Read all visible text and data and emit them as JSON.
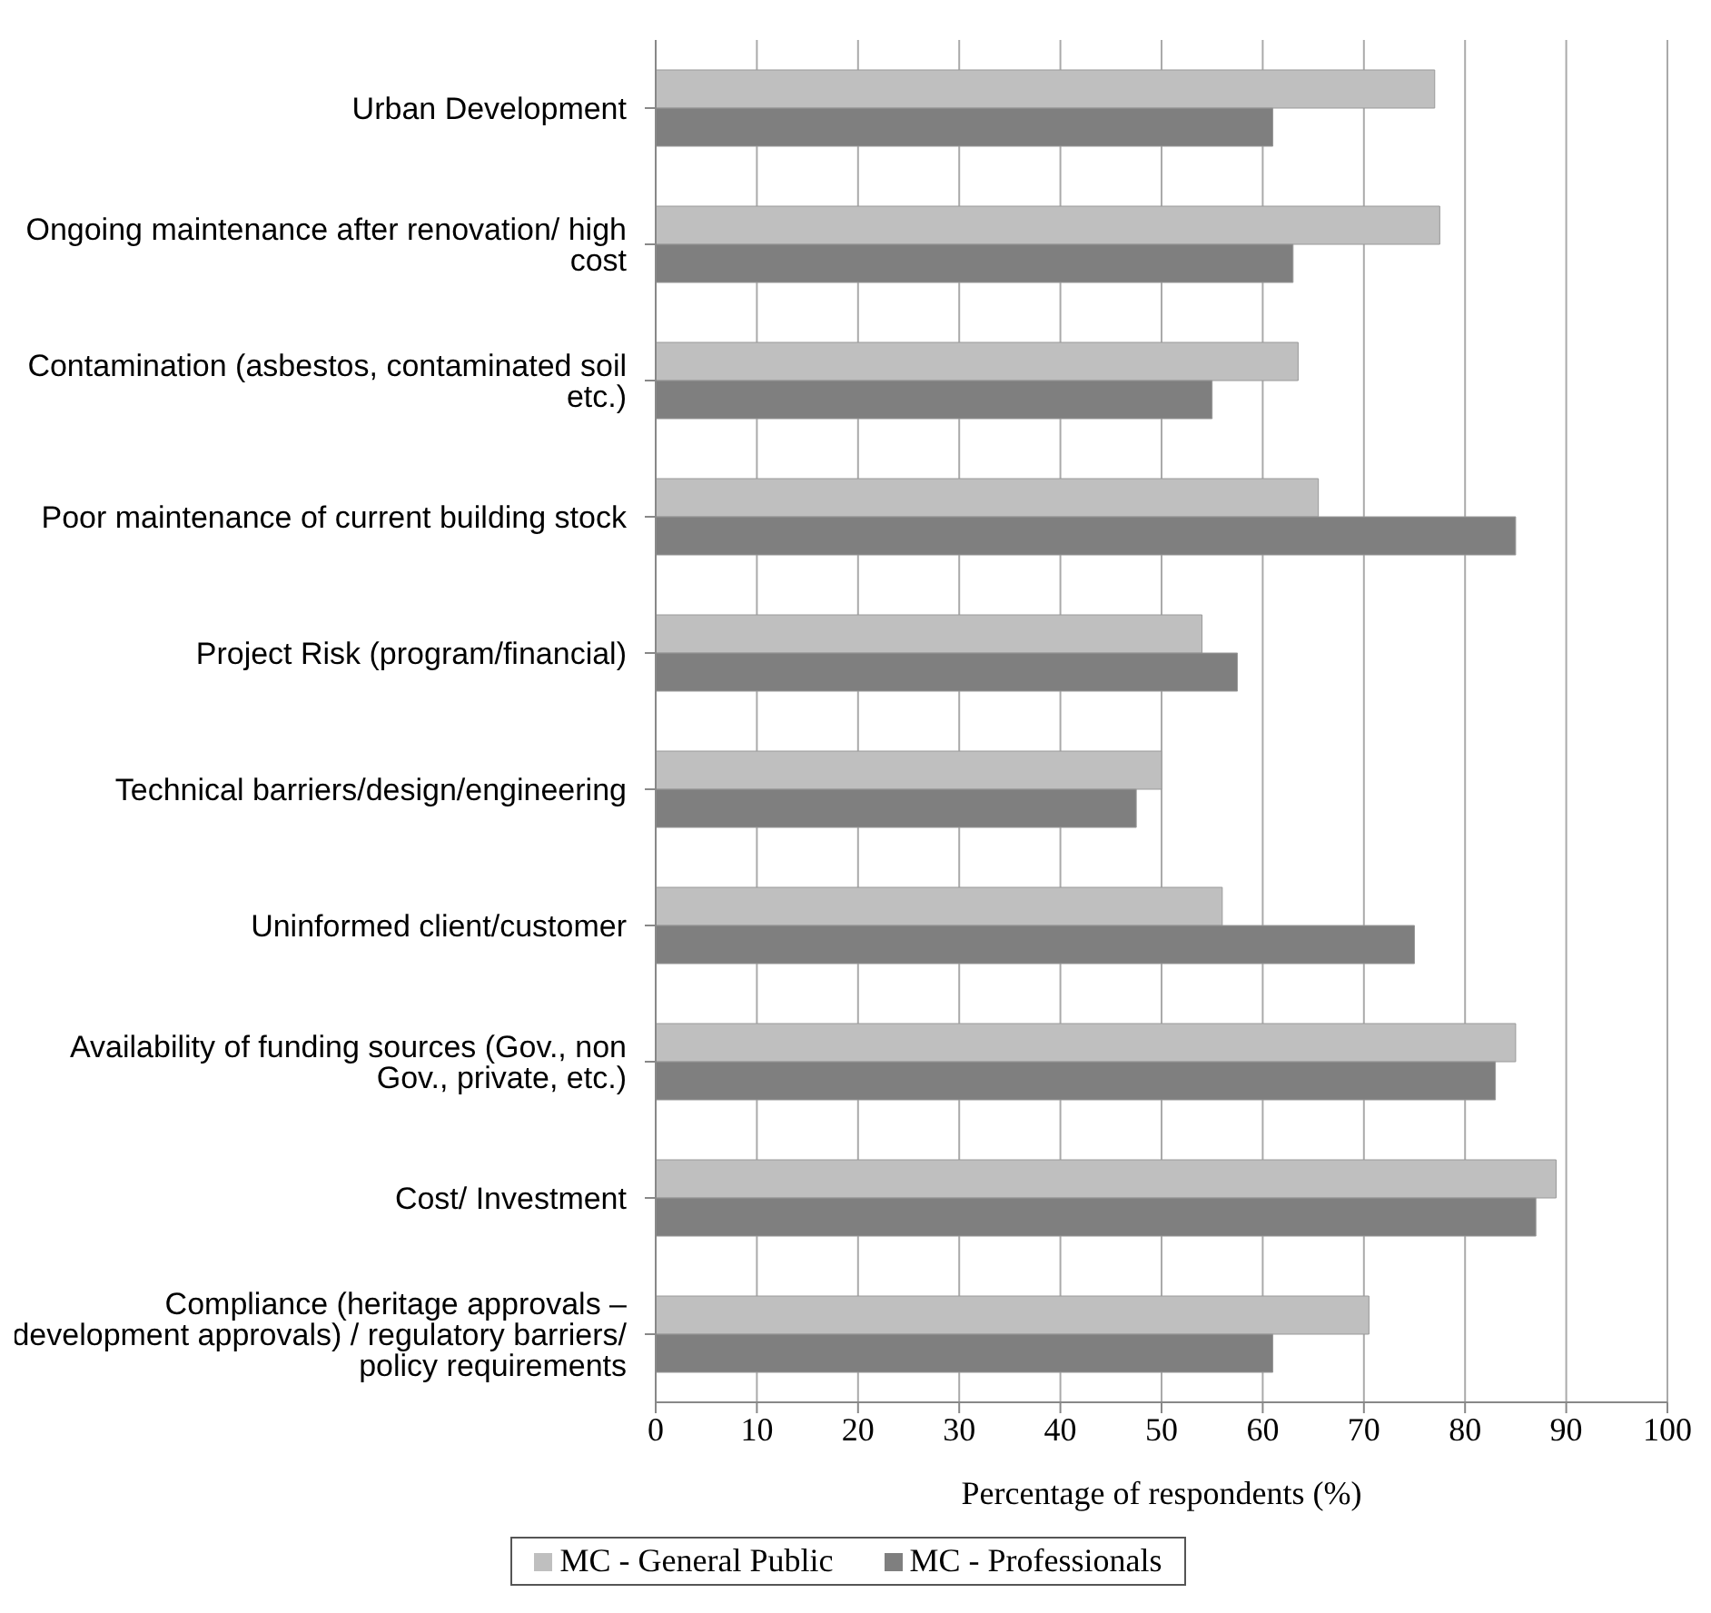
{
  "chart_data": {
    "type": "bar",
    "orientation": "horizontal",
    "xlabel": "Percentage of respondents (%)",
    "categories": [
      "Urban Development",
      "Ongoing maintenance after renovation/ high cost",
      "Contamination (asbestos, contaminated soil etc.)",
      "Poor maintenance of current building stock",
      "Project Risk (program/financial)",
      "Technical barriers/design/engineering",
      "Uninformed client/customer",
      "Availability of funding sources (Gov., non Gov., private, etc.)",
      "Cost/ Investment",
      "Compliance (heritage approvals – development approvals) / regulatory barriers/ policy requirements"
    ],
    "series": [
      {
        "name": "MC - General Public",
        "color": "#bfbfbf",
        "values": [
          77,
          77.5,
          63.5,
          65.5,
          54,
          50,
          56,
          85,
          89,
          70.5
        ]
      },
      {
        "name": "MC - Professionals",
        "color": "#7f7f7f",
        "values": [
          61,
          63,
          55,
          85,
          57.5,
          47.5,
          75,
          83,
          87,
          61
        ]
      }
    ],
    "xlim": [
      0,
      100
    ],
    "xticks": [
      0,
      10,
      20,
      30,
      40,
      50,
      60,
      70,
      80,
      90,
      100
    ],
    "grid": "x",
    "legend": "bottom"
  }
}
